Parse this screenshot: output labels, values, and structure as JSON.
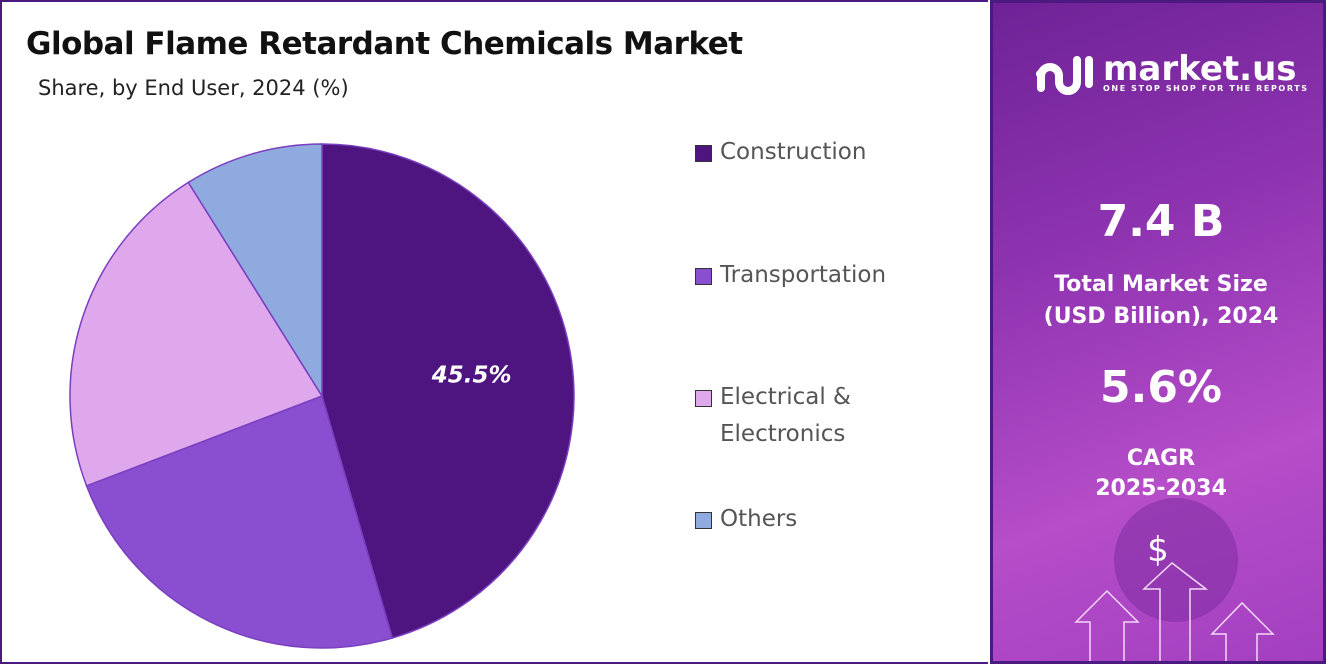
{
  "chart_data": {
    "type": "pie",
    "title": "Global Flame Retardant Chemicals Market",
    "subtitle": "Share, by End User, 2024 (%)",
    "categories": [
      "Construction",
      "Transportation",
      "Electrical & Electronics",
      "Others"
    ],
    "legend_lines": [
      [
        "Construction"
      ],
      [
        "Transportation"
      ],
      [
        "Electrical &",
        "Electronics"
      ],
      [
        "Others"
      ]
    ],
    "values": [
      45.5,
      23.7,
      21.9,
      8.9
    ],
    "colors": [
      "#4e1580",
      "#8a4fd0",
      "#dfa8ec",
      "#8eaadf"
    ],
    "data_labels": [
      "45.5%",
      "",
      "",
      ""
    ],
    "start_angle": "top",
    "direction": "clockwise",
    "legend_placement": "right"
  },
  "sidebar": {
    "brand": "market.us",
    "tagline": "ONE STOP SHOP FOR THE REPORTS",
    "market_size_value": "7.4 B",
    "market_size_label_1": "Total Market Size",
    "market_size_label_2": "(USD Billion), 2024",
    "cagr_value": "5.6%",
    "cagr_label_1": "CAGR",
    "cagr_label_2": "2025-2034",
    "dollar_symbol": "$"
  }
}
